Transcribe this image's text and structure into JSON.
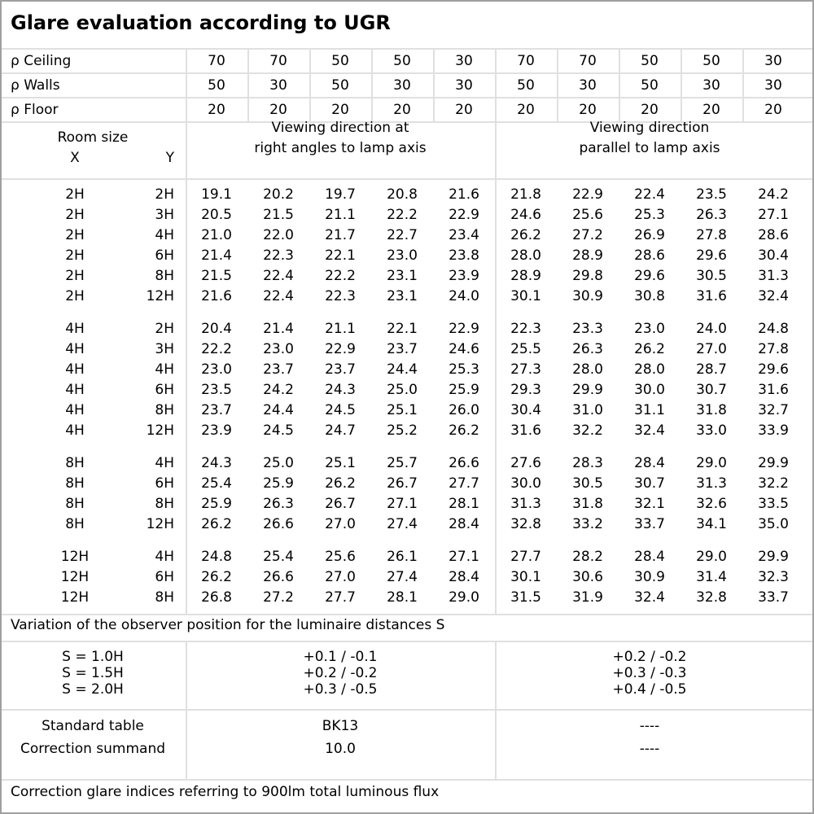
{
  "title": "Glare evaluation according to UGR",
  "reflectances": [
    {
      "label": "ρ Ceiling",
      "values": [
        "70",
        "70",
        "50",
        "50",
        "30",
        "70",
        "70",
        "50",
        "50",
        "30"
      ]
    },
    {
      "label": "ρ Walls",
      "values": [
        "50",
        "30",
        "50",
        "30",
        "30",
        "50",
        "30",
        "50",
        "30",
        "30"
      ]
    },
    {
      "label": "ρ Floor",
      "values": [
        "20",
        "20",
        "20",
        "20",
        "20",
        "20",
        "20",
        "20",
        "20",
        "20"
      ]
    }
  ],
  "header": {
    "room_size": "Room size",
    "x": "X",
    "y": "Y",
    "dir1_l1": "Viewing direction at",
    "dir1_l2": "right angles to lamp axis",
    "dir2_l1": "Viewing direction",
    "dir2_l2": "parallel to lamp axis"
  },
  "groups": [
    [
      {
        "x": "2H",
        "y": "2H",
        "v": [
          "19.1",
          "20.2",
          "19.7",
          "20.8",
          "21.6",
          "21.8",
          "22.9",
          "22.4",
          "23.5",
          "24.2"
        ]
      },
      {
        "x": "2H",
        "y": "3H",
        "v": [
          "20.5",
          "21.5",
          "21.1",
          "22.2",
          "22.9",
          "24.6",
          "25.6",
          "25.3",
          "26.3",
          "27.1"
        ]
      },
      {
        "x": "2H",
        "y": "4H",
        "v": [
          "21.0",
          "22.0",
          "21.7",
          "22.7",
          "23.4",
          "26.2",
          "27.2",
          "26.9",
          "27.8",
          "28.6"
        ]
      },
      {
        "x": "2H",
        "y": "6H",
        "v": [
          "21.4",
          "22.3",
          "22.1",
          "23.0",
          "23.8",
          "28.0",
          "28.9",
          "28.6",
          "29.6",
          "30.4"
        ]
      },
      {
        "x": "2H",
        "y": "8H",
        "v": [
          "21.5",
          "22.4",
          "22.2",
          "23.1",
          "23.9",
          "28.9",
          "29.8",
          "29.6",
          "30.5",
          "31.3"
        ]
      },
      {
        "x": "2H",
        "y": "12H",
        "v": [
          "21.6",
          "22.4",
          "22.3",
          "23.1",
          "24.0",
          "30.1",
          "30.9",
          "30.8",
          "31.6",
          "32.4"
        ]
      }
    ],
    [
      {
        "x": "4H",
        "y": "2H",
        "v": [
          "20.4",
          "21.4",
          "21.1",
          "22.1",
          "22.9",
          "22.3",
          "23.3",
          "23.0",
          "24.0",
          "24.8"
        ]
      },
      {
        "x": "4H",
        "y": "3H",
        "v": [
          "22.2",
          "23.0",
          "22.9",
          "23.7",
          "24.6",
          "25.5",
          "26.3",
          "26.2",
          "27.0",
          "27.8"
        ]
      },
      {
        "x": "4H",
        "y": "4H",
        "v": [
          "23.0",
          "23.7",
          "23.7",
          "24.4",
          "25.3",
          "27.3",
          "28.0",
          "28.0",
          "28.7",
          "29.6"
        ]
      },
      {
        "x": "4H",
        "y": "6H",
        "v": [
          "23.5",
          "24.2",
          "24.3",
          "25.0",
          "25.9",
          "29.3",
          "29.9",
          "30.0",
          "30.7",
          "31.6"
        ]
      },
      {
        "x": "4H",
        "y": "8H",
        "v": [
          "23.7",
          "24.4",
          "24.5",
          "25.1",
          "26.0",
          "30.4",
          "31.0",
          "31.1",
          "31.8",
          "32.7"
        ]
      },
      {
        "x": "4H",
        "y": "12H",
        "v": [
          "23.9",
          "24.5",
          "24.7",
          "25.2",
          "26.2",
          "31.6",
          "32.2",
          "32.4",
          "33.0",
          "33.9"
        ]
      }
    ],
    [
      {
        "x": "8H",
        "y": "4H",
        "v": [
          "24.3",
          "25.0",
          "25.1",
          "25.7",
          "26.6",
          "27.6",
          "28.3",
          "28.4",
          "29.0",
          "29.9"
        ]
      },
      {
        "x": "8H",
        "y": "6H",
        "v": [
          "25.4",
          "25.9",
          "26.2",
          "26.7",
          "27.7",
          "30.0",
          "30.5",
          "30.7",
          "31.3",
          "32.2"
        ]
      },
      {
        "x": "8H",
        "y": "8H",
        "v": [
          "25.9",
          "26.3",
          "26.7",
          "27.1",
          "28.1",
          "31.3",
          "31.8",
          "32.1",
          "32.6",
          "33.5"
        ]
      },
      {
        "x": "8H",
        "y": "12H",
        "v": [
          "26.2",
          "26.6",
          "27.0",
          "27.4",
          "28.4",
          "32.8",
          "33.2",
          "33.7",
          "34.1",
          "35.0"
        ]
      }
    ],
    [
      {
        "x": "12H",
        "y": "4H",
        "v": [
          "24.8",
          "25.4",
          "25.6",
          "26.1",
          "27.1",
          "27.7",
          "28.2",
          "28.4",
          "29.0",
          "29.9"
        ]
      },
      {
        "x": "12H",
        "y": "6H",
        "v": [
          "26.2",
          "26.6",
          "27.0",
          "27.4",
          "28.4",
          "30.1",
          "30.6",
          "30.9",
          "31.4",
          "32.3"
        ]
      },
      {
        "x": "12H",
        "y": "8H",
        "v": [
          "26.8",
          "27.2",
          "27.7",
          "28.1",
          "29.0",
          "31.5",
          "31.9",
          "32.4",
          "32.8",
          "33.7"
        ]
      }
    ]
  ],
  "variation": {
    "label": "Variation of the observer position for the luminaire distances S",
    "rows": [
      {
        "s": "S = 1.0H",
        "a": "+0.1 / -0.1",
        "b": "+0.2 / -0.2"
      },
      {
        "s": "S = 1.5H",
        "a": "+0.2 / -0.2",
        "b": "+0.3 / -0.3"
      },
      {
        "s": "S = 2.0H",
        "a": "+0.3 / -0.5",
        "b": "+0.4 / -0.5"
      }
    ]
  },
  "standard": {
    "label": "Standard table",
    "a": "BK13",
    "b": "----"
  },
  "correction": {
    "label": "Correction summand",
    "a": "10.0",
    "b": "----"
  },
  "footer": "Correction glare indices referring to 900lm total luminous flux"
}
